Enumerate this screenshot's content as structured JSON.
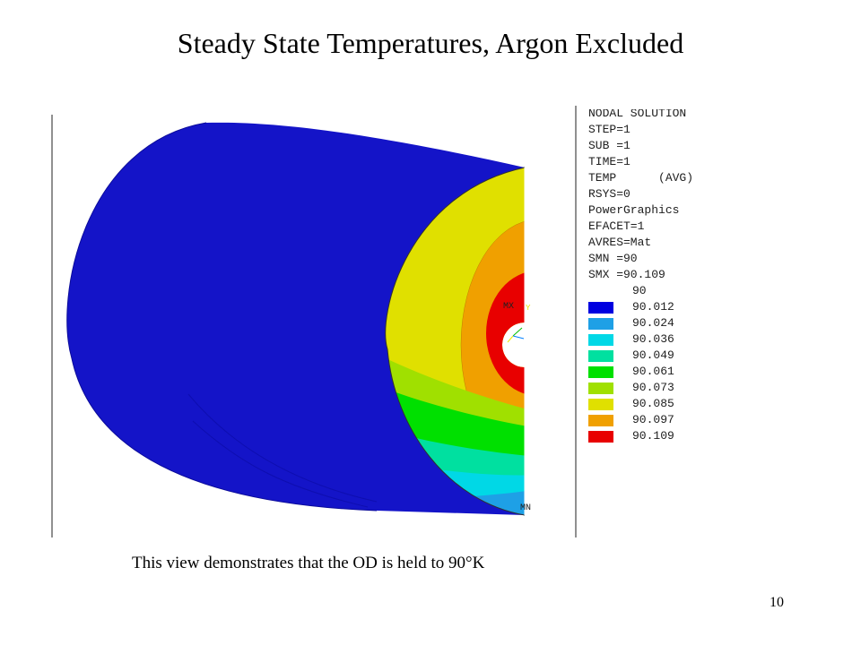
{
  "slide": {
    "title": "Steady State Temperatures, Argon Excluded",
    "caption": "This view demonstrates that the OD is held to 90°K",
    "page_number": "10"
  },
  "plot": {
    "max_marker": "MX",
    "min_marker": "MN",
    "header_lines": [
      "NODAL SOLUTION",
      "STEP=1",
      "SUB =1",
      "TIME=1",
      "TEMP      (AVG)",
      "RSYS=0",
      "PowerGraphics",
      "EFACET=1",
      "AVRES=Mat",
      "SMN =90",
      "SMX =90.109"
    ],
    "legend_levels": [
      {
        "value": "90",
        "color": null
      },
      {
        "value": "90.012",
        "color": "#0000e0"
      },
      {
        "value": "90.024",
        "color": "#1ea0e6"
      },
      {
        "value": "90.036",
        "color": "#00d8e6"
      },
      {
        "value": "90.049",
        "color": "#00e0a0"
      },
      {
        "value": "90.061",
        "color": "#00e000"
      },
      {
        "value": "90.073",
        "color": "#a0e000"
      },
      {
        "value": "90.085",
        "color": "#e0e000"
      },
      {
        "value": "90.097",
        "color": "#f0a000"
      },
      {
        "value": "90.109",
        "color": "#e80000"
      }
    ]
  }
}
